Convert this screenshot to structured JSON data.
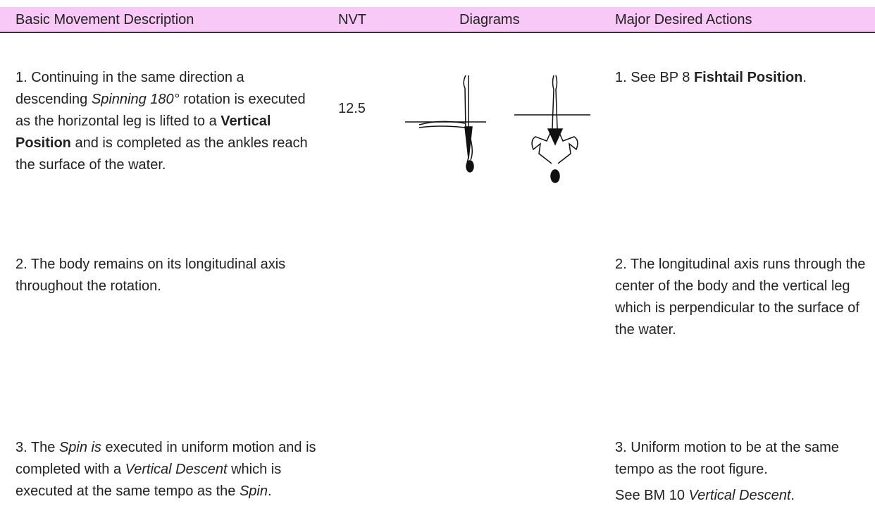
{
  "table": {
    "headers": [
      "Basic Movement Description",
      "NVT",
      "Diagrams",
      "Major Desired Actions"
    ],
    "rows": [
      {
        "description": [
          "1. Continuing in the same direction a descending ",
          {
            "text": "Spinning 180°",
            "style": "italic"
          },
          " rotation is executed as the horizontal leg is lifted to a ",
          {
            "text": "Vertical Position",
            "style": "bold"
          },
          " and is completed as the ankles reach the surface of the water."
        ],
        "nvt": "12.5",
        "actions": [
          [
            "1. See BP 8 ",
            {
              "text": "Fishtail Position",
              "style": "bold"
            },
            "."
          ]
        ]
      },
      {
        "description": [
          "2. The body remains on its longitudinal axis throughout the rotation."
        ],
        "actions": [
          [
            "2. The longitudinal axis runs through the center of the body and the vertical leg which is perpendicular to the surface of the water."
          ]
        ]
      },
      {
        "description": [
          "3. The ",
          {
            "text": "Spin is",
            "style": "italic"
          },
          " executed in uniform motion and is completed with a ",
          {
            "text": "Vertical Descent",
            "style": "italic"
          },
          " which is executed at the same tempo as the ",
          {
            "text": "Spin",
            "style": "italic"
          },
          "."
        ],
        "actions": [
          [
            "3. Uniform motion to be at the same tempo as the root figure."
          ],
          [
            "See BM 10 ",
            {
              "text": "Vertical Descent",
              "style": "italic"
            },
            "."
          ]
        ]
      }
    ]
  }
}
